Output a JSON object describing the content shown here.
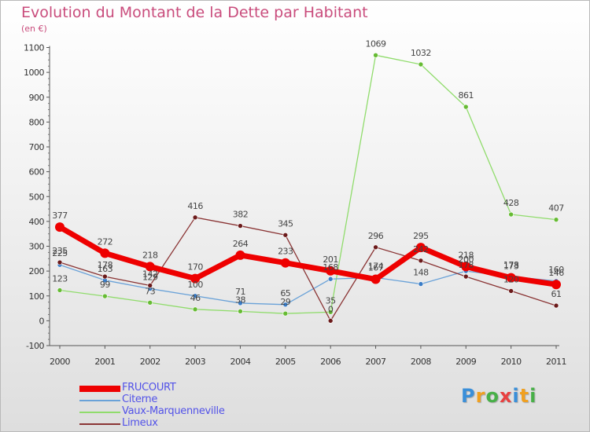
{
  "header": {
    "title": "Evolution du Montant de la Dette par Habitant",
    "subtitle": "(en €)"
  },
  "logo": {
    "letters": [
      "P",
      "r",
      "o",
      "x",
      "i",
      "t",
      "i"
    ],
    "colors": [
      "#3a8fd9",
      "#f0a020",
      "#48b048",
      "#e84040",
      "#3a8fd9",
      "#f0a020",
      "#48b048"
    ]
  },
  "chart_data": {
    "type": "line",
    "categories": [
      "2000",
      "2001",
      "2002",
      "2003",
      "2004",
      "2005",
      "2006",
      "2007",
      "2008",
      "2009",
      "2010",
      "2011"
    ],
    "ylim": [
      -100,
      1100
    ],
    "yticks": [
      "-100",
      "0",
      "100",
      "200",
      "300",
      "400",
      "500",
      "600",
      "700",
      "800",
      "900",
      "1000",
      "1100"
    ],
    "grid": false,
    "legend_position": "bottom-left",
    "series": [
      {
        "name": "Vaux-Marquenneville",
        "color": "#90dc6c",
        "marker": "#66bb33",
        "width": 1.3,
        "values": [
          123,
          99,
          73,
          46,
          38,
          29,
          35,
          1069,
          1032,
          861,
          428,
          407
        ],
        "labels": [
          "123",
          "99",
          "73",
          "46",
          "38",
          "29",
          "35",
          "1069",
          "1032",
          "861",
          "428",
          "407"
        ]
      },
      {
        "name": "Citerne",
        "color": "#6aa2d8",
        "marker": "#3a7cc6",
        "width": 1.3,
        "values": [
          225,
          163,
          129,
          100,
          71,
          65,
          168,
          174,
          148,
          200,
          178,
          160
        ],
        "labels": [
          "225",
          "163",
          "129",
          "100",
          "71",
          "65",
          "168",
          "174",
          "148",
          "200",
          "178",
          "160"
        ]
      },
      {
        "name": "Limeux",
        "color": "#8a3434",
        "marker": "#6b1a1a",
        "width": 1.3,
        "values": [
          235,
          178,
          142,
          416,
          382,
          345,
          0,
          296,
          242,
          178,
          120,
          61
        ],
        "labels": [
          "235",
          "178",
          "142",
          "416",
          "382",
          "345",
          "0",
          "296",
          "242",
          "178",
          "120",
          "61"
        ]
      },
      {
        "name": "FRUCOURT",
        "color": "#ee0000",
        "marker": "#ee0000",
        "width": 7,
        "values": [
          377,
          272,
          218,
          170,
          264,
          233,
          201,
          167,
          295,
          218,
          173,
          146
        ],
        "labels": [
          "377",
          "272",
          "218",
          "170",
          "264",
          "233",
          "201",
          "167",
          "295",
          "218",
          "173",
          "146"
        ]
      }
    ]
  },
  "legend": [
    {
      "name": "FRUCOURT",
      "color": "#ee0000",
      "width": 8
    },
    {
      "name": "Citerne",
      "color": "#6aa2d8",
      "width": 2
    },
    {
      "name": "Vaux-Marquenneville",
      "color": "#90dc6c",
      "width": 2
    },
    {
      "name": "Limeux",
      "color": "#8a3434",
      "width": 2
    }
  ]
}
